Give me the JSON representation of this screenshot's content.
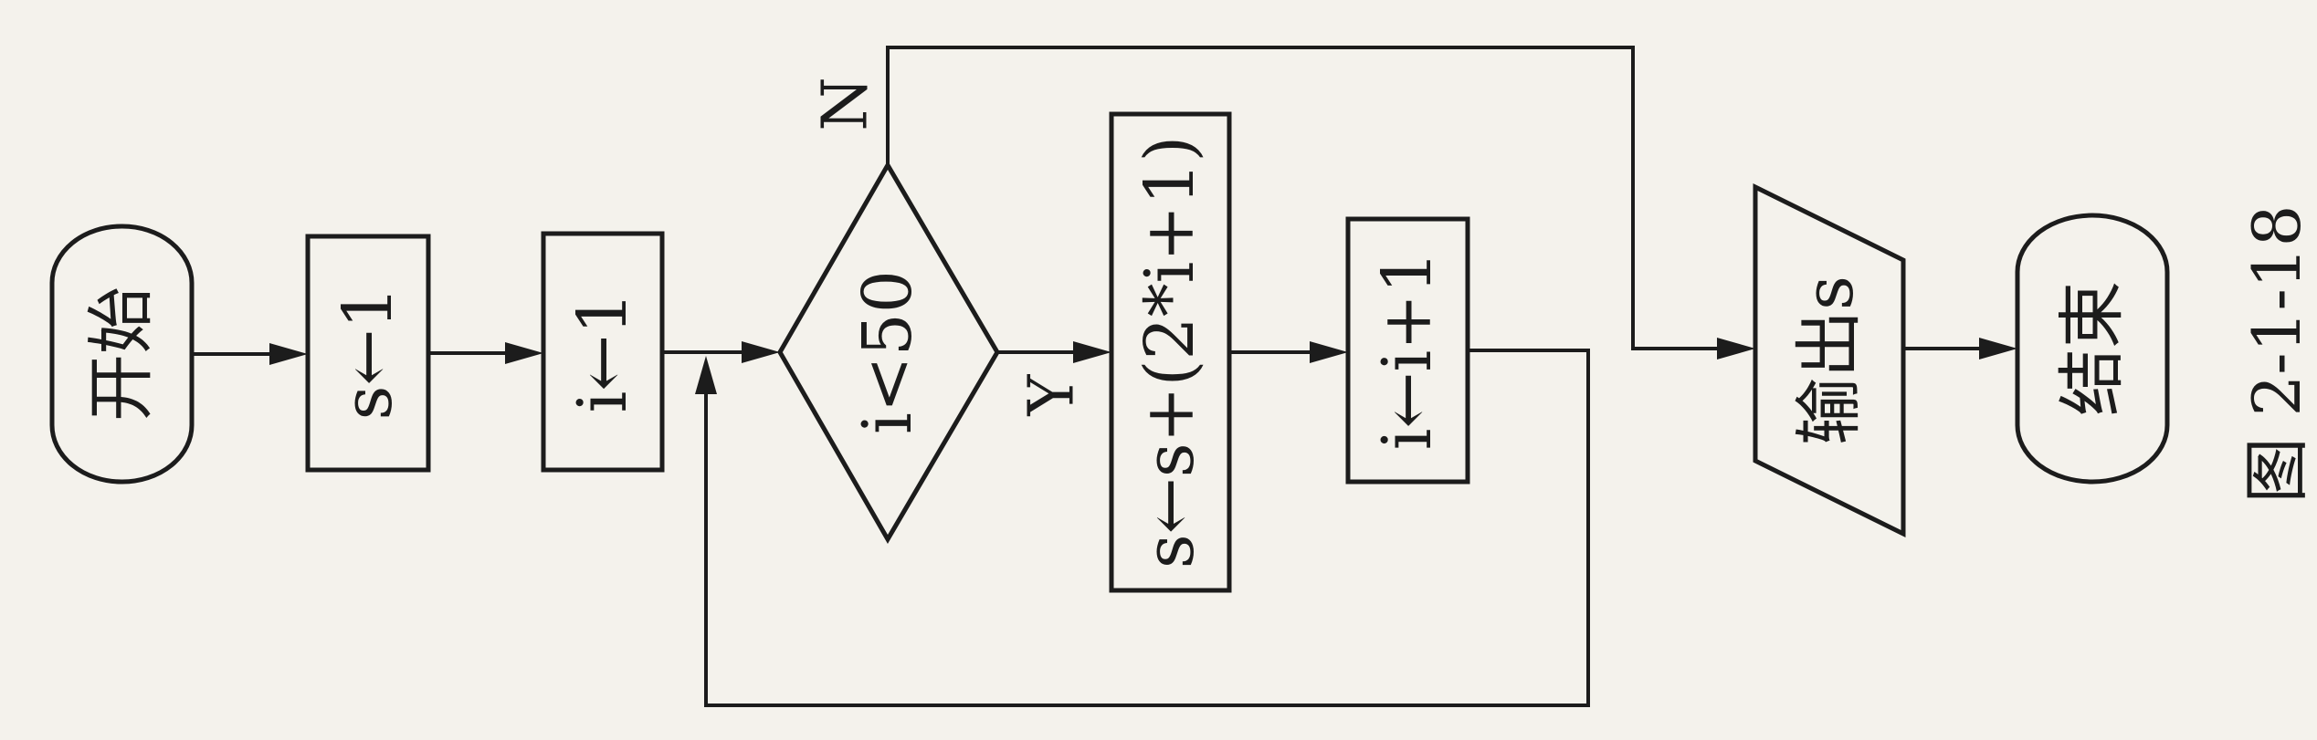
{
  "flowchart": {
    "start": "开始",
    "init_s": "s←1",
    "init_i": "i←1",
    "condition": "i<50",
    "branch_no": "N",
    "branch_yes": "Y",
    "update_s": "s←s+(2*i+1)",
    "update_i": "i←i+1",
    "output": "输出s",
    "end": "结束"
  },
  "caption": "图 2-1-18",
  "colors": {
    "ink": "#1c1c1c",
    "paper": "#f4f2ec"
  }
}
